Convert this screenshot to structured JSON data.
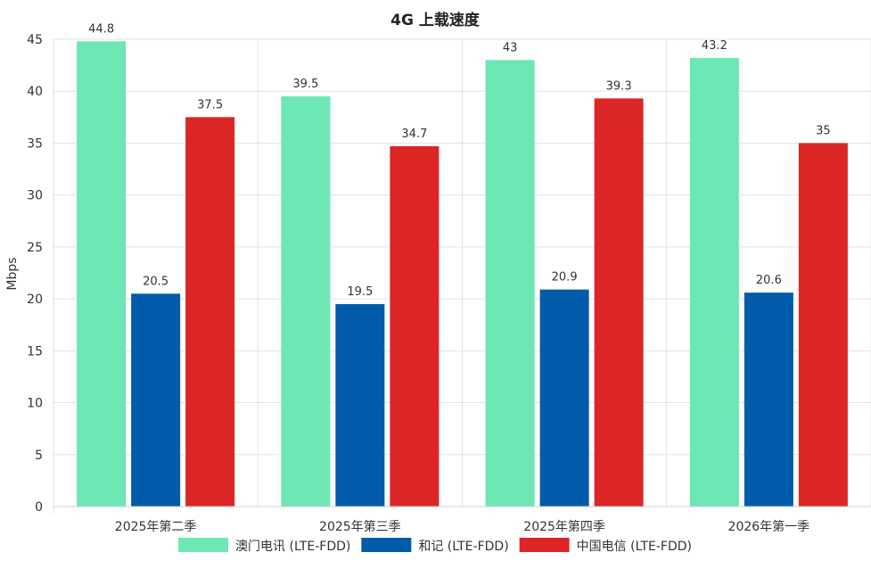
{
  "chart_data": {
    "type": "bar",
    "title": "4G 上载速度",
    "ylabel": "Mbps",
    "xlabel": "",
    "ylim": [
      0,
      45
    ],
    "yticks": [
      0,
      5,
      10,
      15,
      20,
      25,
      30,
      35,
      40,
      45
    ],
    "grid": true,
    "legend_position": "bottom",
    "categories": [
      "2025年第二季",
      "2025年第三季",
      "2025年第四季",
      "2026年第一季"
    ],
    "series": [
      {
        "name": "澳门电讯 (LTE-FDD)",
        "color": "#6de8b5",
        "values": [
          44.8,
          39.5,
          43,
          43.2
        ]
      },
      {
        "name": "和记 (LTE-FDD)",
        "color": "#005bab",
        "values": [
          20.5,
          19.5,
          20.9,
          20.6
        ]
      },
      {
        "name": "中国电信 (LTE-FDD)",
        "color": "#dc2626",
        "values": [
          37.5,
          34.7,
          39.3,
          35
        ]
      }
    ]
  }
}
